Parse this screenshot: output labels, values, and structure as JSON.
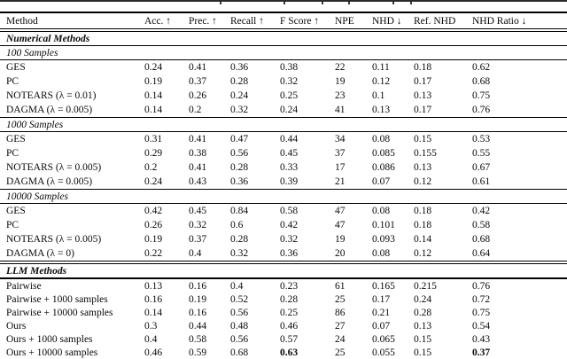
{
  "table": {
    "columns": [
      "Method",
      "Acc. ↑",
      "Prec. ↑",
      "Recall ↑",
      "F Score ↑",
      "NPE",
      "NHD ↓",
      "Ref. NHD",
      "NHD Ratio ↓"
    ],
    "groups": [
      {
        "label": "Numerical Methods",
        "id": "numerical",
        "subgroups": [
          {
            "label": "100 Samples",
            "rows": [
              {
                "method": "GES",
                "values": [
                  "0.24",
                  "0.41",
                  "0.36",
                  "0.38",
                  "22",
                  "0.11",
                  "0.18",
                  "0.62"
                ]
              },
              {
                "method": "PC",
                "values": [
                  "0.19",
                  "0.37",
                  "0.28",
                  "0.32",
                  "19",
                  "0.12",
                  "0.17",
                  "0.68"
                ]
              },
              {
                "method": "NOTEARS (λ = 0.01)",
                "values": [
                  "0.14",
                  "0.26",
                  "0.24",
                  "0.25",
                  "23",
                  "0.1",
                  "0.13",
                  "0.75"
                ]
              },
              {
                "method": "DAGMA (λ = 0.005)",
                "values": [
                  "0.14",
                  "0.2",
                  "0.32",
                  "0.24",
                  "41",
                  "0.13",
                  "0.17",
                  "0.76"
                ]
              }
            ]
          },
          {
            "label": "1000 Samples",
            "rows": [
              {
                "method": "GES",
                "values": [
                  "0.31",
                  "0.41",
                  "0.47",
                  "0.44",
                  "34",
                  "0.08",
                  "0.15",
                  "0.53"
                ]
              },
              {
                "method": "PC",
                "values": [
                  "0.29",
                  "0.38",
                  "0.56",
                  "0.45",
                  "37",
                  "0.085",
                  "0.155",
                  "0.55"
                ]
              },
              {
                "method": "NOTEARS (λ = 0.005)",
                "values": [
                  "0.2",
                  "0.41",
                  "0.28",
                  "0.33",
                  "17",
                  "0.086",
                  "0.13",
                  "0.67"
                ]
              },
              {
                "method": "DAGMA (λ = 0.005)",
                "values": [
                  "0.24",
                  "0.43",
                  "0.36",
                  "0.39",
                  "21",
                  "0.07",
                  "0.12",
                  "0.61"
                ]
              }
            ]
          },
          {
            "label": "10000 Samples",
            "rows": [
              {
                "method": "GES",
                "values": [
                  "0.42",
                  "0.45",
                  "0.84",
                  "0.58",
                  "47",
                  "0.08",
                  "0.18",
                  "0.42"
                ]
              },
              {
                "method": "PC",
                "values": [
                  "0.26",
                  "0.32",
                  "0.6",
                  "0.42",
                  "47",
                  "0.101",
                  "0.18",
                  "0.58"
                ]
              },
              {
                "method": "NOTEARS (λ = 0.005)",
                "values": [
                  "0.19",
                  "0.37",
                  "0.28",
                  "0.32",
                  "19",
                  "0.093",
                  "0.14",
                  "0.68"
                ]
              },
              {
                "method": "DAGMA (λ = 0)",
                "values": [
                  "0.22",
                  "0.4",
                  "0.32",
                  "0.36",
                  "20",
                  "0.08",
                  "0.12",
                  "0.64"
                ]
              }
            ]
          }
        ]
      },
      {
        "label": "LLM Methods",
        "id": "llm",
        "subgroups": [
          {
            "label": null,
            "rows": [
              {
                "method": "Pairwise",
                "values": [
                  "0.13",
                  "0.16",
                  "0.4",
                  "0.23",
                  "61",
                  "0.165",
                  "0.215",
                  "0.76"
                ]
              },
              {
                "method": "Pairwise + 1000 samples",
                "values": [
                  "0.16",
                  "0.19",
                  "0.52",
                  "0.28",
                  "25",
                  "0.17",
                  "0.24",
                  "0.72"
                ]
              },
              {
                "method": "Pairwise + 10000 samples",
                "values": [
                  "0.14",
                  "0.16",
                  "0.56",
                  "0.25",
                  "86",
                  "0.21",
                  "0.28",
                  "0.75"
                ]
              },
              {
                "method": "Ours",
                "values": [
                  "0.3",
                  "0.44",
                  "0.48",
                  "0.46",
                  "27",
                  "0.07",
                  "0.13",
                  "0.54"
                ]
              },
              {
                "method": "Ours + 1000 samples",
                "values": [
                  "0.4",
                  "0.58",
                  "0.56",
                  "0.57",
                  "24",
                  "0.065",
                  "0.15",
                  "0.43"
                ]
              },
              {
                "method": "Ours + 10000 samples",
                "values": [
                  "0.46",
                  "0.59",
                  "0.68",
                  "0.63",
                  "25",
                  "0.055",
                  "0.15",
                  "0.37"
                ],
                "bold_values": [
                  3,
                  7
                ]
              }
            ]
          }
        ]
      }
    ]
  }
}
